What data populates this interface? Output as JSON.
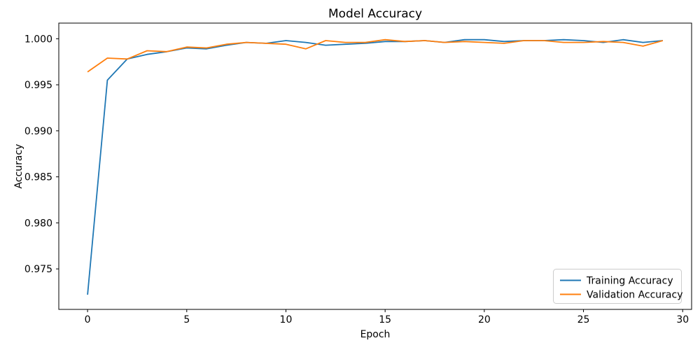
{
  "colors": {
    "background": "#ffffff",
    "text": "#000000",
    "spine": "#000000",
    "legend_border": "#cccccc",
    "training": "#1f77b4",
    "validation": "#ff7f0e"
  },
  "chart_data": {
    "type": "line",
    "title": "Model Accuracy",
    "xlabel": "Epoch",
    "ylabel": "Accuracy",
    "grid": false,
    "legend_position": "lower right",
    "xlim": [
      -1.45,
      30.45
    ],
    "ylim": [
      0.9706,
      1.0017
    ],
    "xticks": [
      0,
      5,
      10,
      15,
      20,
      25,
      30
    ],
    "xtick_labels": [
      "0",
      "5",
      "10",
      "15",
      "20",
      "25",
      "30"
    ],
    "yticks": [
      0.975,
      0.98,
      0.985,
      0.99,
      0.995,
      1.0
    ],
    "ytick_labels": [
      "0.975",
      "0.980",
      "0.985",
      "0.990",
      "0.995",
      "1.000"
    ],
    "x": [
      0,
      1,
      2,
      3,
      4,
      5,
      6,
      7,
      8,
      9,
      10,
      11,
      12,
      13,
      14,
      15,
      16,
      17,
      18,
      19,
      20,
      21,
      22,
      23,
      24,
      25,
      26,
      27,
      28,
      29
    ],
    "series": [
      {
        "name": "Training Accuracy",
        "color": "#1f77b4",
        "values": [
          0.9722,
          0.9955,
          0.9978,
          0.9983,
          0.9986,
          0.999,
          0.9989,
          0.9993,
          0.9996,
          0.9995,
          0.9998,
          0.9996,
          0.9993,
          0.9994,
          0.9995,
          0.9997,
          0.9997,
          0.9998,
          0.9996,
          0.9999,
          0.9999,
          0.9997,
          0.9998,
          0.9998,
          0.9999,
          0.9998,
          0.9996,
          0.9999,
          0.9996,
          0.9998
        ]
      },
      {
        "name": "Validation Accuracy",
        "color": "#ff7f0e",
        "values": [
          0.9964,
          0.9979,
          0.9978,
          0.9987,
          0.9986,
          0.9991,
          0.999,
          0.9994,
          0.9996,
          0.9995,
          0.9994,
          0.9989,
          0.9998,
          0.9996,
          0.9996,
          0.9999,
          0.9997,
          0.9998,
          0.9996,
          0.9997,
          0.9996,
          0.9995,
          0.9998,
          0.9998,
          0.9996,
          0.9996,
          0.9997,
          0.9996,
          0.9992,
          0.9998
        ]
      }
    ]
  }
}
